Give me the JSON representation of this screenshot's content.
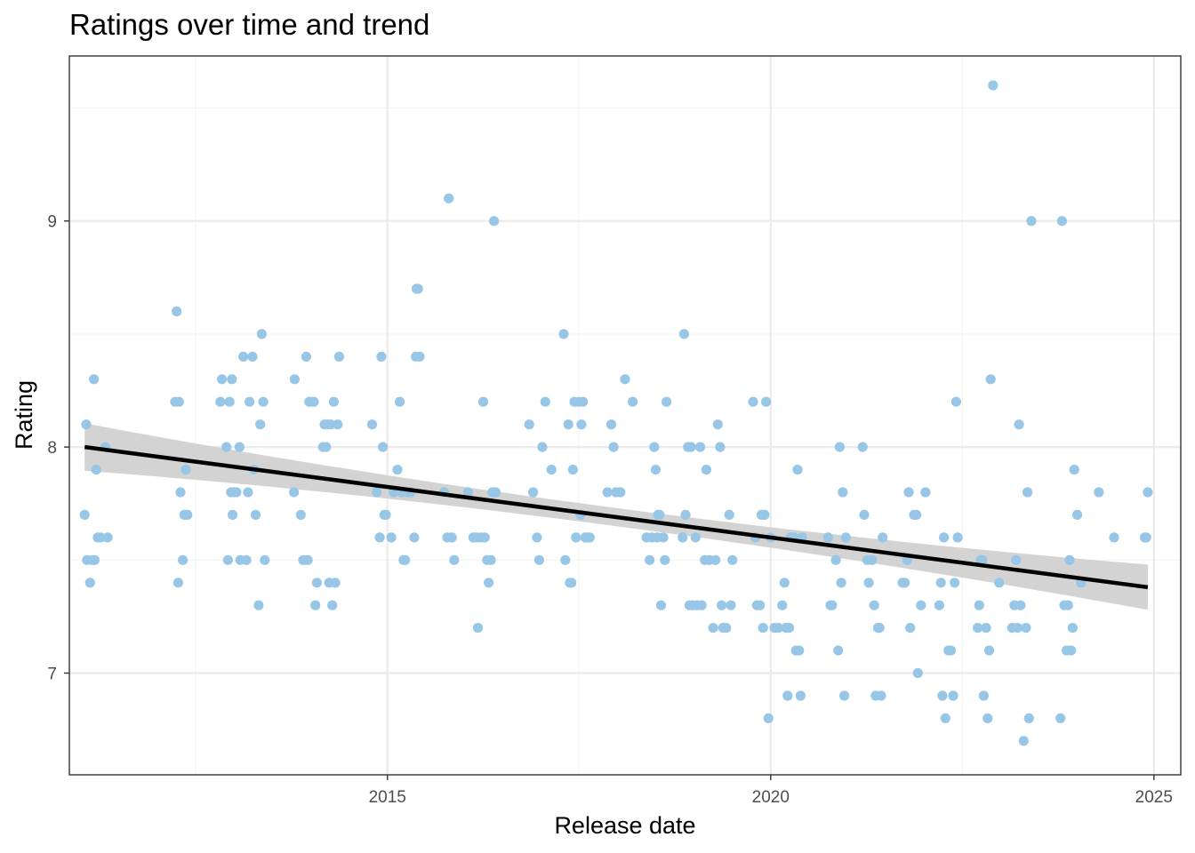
{
  "chart_data": {
    "type": "scatter",
    "title": "Ratings over time and trend",
    "xlabel": "Release date",
    "ylabel": "Rating",
    "x_ticks": [
      "2015",
      "2020",
      "2025"
    ],
    "y_ticks": [
      "7",
      "8",
      "9"
    ],
    "xlim": [
      2010.85,
      2025.35
    ],
    "ylim": [
      6.55,
      9.73
    ],
    "grid": true,
    "colors": {
      "points": "#98c6e6",
      "trend": "#000000",
      "band": "#d3d3d3",
      "grid_major": "#ebebeb",
      "grid_minor": "#f4f4f4",
      "frame": "#333333"
    },
    "points": [
      [
        2011.05,
        7.7
      ],
      [
        2011.07,
        8.1
      ],
      [
        2011.08,
        7.5
      ],
      [
        2011.12,
        7.4
      ],
      [
        2011.15,
        7.5
      ],
      [
        2011.17,
        8.3
      ],
      [
        2011.18,
        7.5
      ],
      [
        2011.2,
        7.9
      ],
      [
        2011.22,
        7.6
      ],
      [
        2011.26,
        7.6
      ],
      [
        2011.32,
        8.0
      ],
      [
        2011.35,
        7.6
      ],
      [
        2012.23,
        8.2
      ],
      [
        2012.25,
        8.6
      ],
      [
        2012.27,
        7.4
      ],
      [
        2012.28,
        8.2
      ],
      [
        2012.3,
        7.8
      ],
      [
        2012.33,
        7.5
      ],
      [
        2012.35,
        7.7
      ],
      [
        2012.37,
        7.9
      ],
      [
        2012.39,
        7.7
      ],
      [
        2012.82,
        8.2
      ],
      [
        2012.84,
        8.3
      ],
      [
        2012.9,
        8.0
      ],
      [
        2012.92,
        7.5
      ],
      [
        2012.94,
        8.2
      ],
      [
        2012.96,
        7.8
      ],
      [
        2012.97,
        8.3
      ],
      [
        2012.98,
        7.7
      ],
      [
        2013.0,
        7.8
      ],
      [
        2013.03,
        7.8
      ],
      [
        2013.07,
        8.0
      ],
      [
        2013.08,
        7.5
      ],
      [
        2013.12,
        8.4
      ],
      [
        2013.16,
        7.5
      ],
      [
        2013.18,
        7.8
      ],
      [
        2013.2,
        8.2
      ],
      [
        2013.24,
        8.4
      ],
      [
        2013.26,
        7.9
      ],
      [
        2013.28,
        7.7
      ],
      [
        2013.32,
        7.3
      ],
      [
        2013.34,
        8.1
      ],
      [
        2013.36,
        8.5
      ],
      [
        2013.38,
        8.2
      ],
      [
        2013.4,
        7.5
      ],
      [
        2013.78,
        7.8
      ],
      [
        2013.79,
        8.3
      ],
      [
        2013.87,
        7.7
      ],
      [
        2013.9,
        7.5
      ],
      [
        2013.94,
        8.4
      ],
      [
        2013.96,
        7.5
      ],
      [
        2013.98,
        8.2
      ],
      [
        2014.0,
        8.2
      ],
      [
        2014.04,
        8.2
      ],
      [
        2014.06,
        7.3
      ],
      [
        2014.08,
        7.4
      ],
      [
        2014.16,
        8.0
      ],
      [
        2014.18,
        8.1
      ],
      [
        2014.2,
        8.0
      ],
      [
        2014.22,
        8.1
      ],
      [
        2014.24,
        7.4
      ],
      [
        2014.26,
        8.1
      ],
      [
        2014.28,
        7.3
      ],
      [
        2014.3,
        8.2
      ],
      [
        2014.32,
        7.4
      ],
      [
        2014.35,
        8.1
      ],
      [
        2014.37,
        8.4
      ],
      [
        2014.8,
        8.1
      ],
      [
        2014.86,
        7.8
      ],
      [
        2014.9,
        7.6
      ],
      [
        2014.92,
        8.4
      ],
      [
        2014.94,
        8.0
      ],
      [
        2014.96,
        7.7
      ],
      [
        2014.98,
        7.7
      ],
      [
        2015.05,
        7.6
      ],
      [
        2015.08,
        7.8
      ],
      [
        2015.13,
        7.9
      ],
      [
        2015.16,
        8.2
      ],
      [
        2015.19,
        7.8
      ],
      [
        2015.21,
        7.5
      ],
      [
        2015.23,
        7.5
      ],
      [
        2015.27,
        7.8
      ],
      [
        2015.3,
        7.8
      ],
      [
        2015.35,
        7.6
      ],
      [
        2015.37,
        8.4
      ],
      [
        2015.38,
        8.7
      ],
      [
        2015.4,
        8.7
      ],
      [
        2015.42,
        8.4
      ],
      [
        2015.74,
        7.8
      ],
      [
        2015.78,
        7.6
      ],
      [
        2015.8,
        9.1
      ],
      [
        2015.84,
        7.6
      ],
      [
        2015.87,
        7.5
      ],
      [
        2016.05,
        7.8
      ],
      [
        2016.12,
        7.6
      ],
      [
        2016.16,
        7.6
      ],
      [
        2016.18,
        7.2
      ],
      [
        2016.22,
        7.6
      ],
      [
        2016.25,
        8.2
      ],
      [
        2016.27,
        7.6
      ],
      [
        2016.3,
        7.5
      ],
      [
        2016.32,
        7.4
      ],
      [
        2016.35,
        7.5
      ],
      [
        2016.37,
        7.8
      ],
      [
        2016.39,
        9.0
      ],
      [
        2016.41,
        7.8
      ],
      [
        2016.85,
        8.1
      ],
      [
        2016.9,
        7.8
      ],
      [
        2016.95,
        7.6
      ],
      [
        2016.98,
        7.5
      ],
      [
        2017.02,
        8.0
      ],
      [
        2017.06,
        8.2
      ],
      [
        2017.14,
        7.9
      ],
      [
        2017.3,
        8.5
      ],
      [
        2017.32,
        7.5
      ],
      [
        2017.36,
        8.1
      ],
      [
        2017.38,
        7.4
      ],
      [
        2017.4,
        7.4
      ],
      [
        2017.42,
        7.9
      ],
      [
        2017.44,
        8.2
      ],
      [
        2017.46,
        7.6
      ],
      [
        2017.5,
        8.2
      ],
      [
        2017.52,
        7.7
      ],
      [
        2017.53,
        8.1
      ],
      [
        2017.55,
        8.2
      ],
      [
        2017.58,
        7.6
      ],
      [
        2017.61,
        7.6
      ],
      [
        2017.64,
        7.6
      ],
      [
        2017.87,
        7.8
      ],
      [
        2017.92,
        8.1
      ],
      [
        2017.95,
        8.0
      ],
      [
        2017.98,
        7.8
      ],
      [
        2018.04,
        7.8
      ],
      [
        2018.1,
        8.3
      ],
      [
        2018.2,
        8.2
      ],
      [
        2018.38,
        7.6
      ],
      [
        2018.42,
        7.5
      ],
      [
        2018.45,
        7.6
      ],
      [
        2018.48,
        8.0
      ],
      [
        2018.5,
        7.9
      ],
      [
        2018.52,
        7.6
      ],
      [
        2018.53,
        7.7
      ],
      [
        2018.55,
        7.7
      ],
      [
        2018.57,
        7.3
      ],
      [
        2018.6,
        7.6
      ],
      [
        2018.62,
        7.5
      ],
      [
        2018.64,
        8.2
      ],
      [
        2018.85,
        7.6
      ],
      [
        2018.87,
        8.5
      ],
      [
        2018.89,
        7.7
      ],
      [
        2018.92,
        8.0
      ],
      [
        2018.94,
        7.3
      ],
      [
        2018.96,
        8.0
      ],
      [
        2018.98,
        7.3
      ],
      [
        2019.02,
        7.6
      ],
      [
        2019.04,
        7.3
      ],
      [
        2019.08,
        8.0
      ],
      [
        2019.1,
        7.3
      ],
      [
        2019.14,
        7.5
      ],
      [
        2019.16,
        7.9
      ],
      [
        2019.2,
        7.5
      ],
      [
        2019.25,
        7.2
      ],
      [
        2019.28,
        7.5
      ],
      [
        2019.31,
        8.1
      ],
      [
        2019.34,
        8.0
      ],
      [
        2019.36,
        7.3
      ],
      [
        2019.38,
        7.2
      ],
      [
        2019.42,
        7.2
      ],
      [
        2019.46,
        7.7
      ],
      [
        2019.48,
        7.3
      ],
      [
        2019.5,
        7.5
      ],
      [
        2019.77,
        8.2
      ],
      [
        2019.8,
        7.6
      ],
      [
        2019.82,
        7.3
      ],
      [
        2019.86,
        7.3
      ],
      [
        2019.88,
        7.7
      ],
      [
        2019.9,
        7.2
      ],
      [
        2019.92,
        7.7
      ],
      [
        2019.94,
        8.2
      ],
      [
        2019.97,
        6.8
      ],
      [
        2020.0,
        7.6
      ],
      [
        2020.05,
        7.2
      ],
      [
        2020.1,
        7.2
      ],
      [
        2020.15,
        7.3
      ],
      [
        2020.18,
        7.4
      ],
      [
        2020.2,
        7.2
      ],
      [
        2020.22,
        6.9
      ],
      [
        2020.24,
        7.2
      ],
      [
        2020.26,
        7.6
      ],
      [
        2020.3,
        7.6
      ],
      [
        2020.33,
        7.1
      ],
      [
        2020.35,
        7.9
      ],
      [
        2020.37,
        7.1
      ],
      [
        2020.39,
        6.9
      ],
      [
        2020.41,
        7.6
      ],
      [
        2020.75,
        7.6
      ],
      [
        2020.78,
        7.3
      ],
      [
        2020.8,
        7.3
      ],
      [
        2020.85,
        7.5
      ],
      [
        2020.88,
        7.1
      ],
      [
        2020.9,
        8.0
      ],
      [
        2020.92,
        7.4
      ],
      [
        2020.94,
        7.8
      ],
      [
        2020.96,
        6.9
      ],
      [
        2020.98,
        7.6
      ],
      [
        2021.2,
        8.0
      ],
      [
        2021.22,
        7.7
      ],
      [
        2021.26,
        7.5
      ],
      [
        2021.28,
        7.4
      ],
      [
        2021.32,
        7.5
      ],
      [
        2021.35,
        7.3
      ],
      [
        2021.37,
        6.9
      ],
      [
        2021.4,
        7.2
      ],
      [
        2021.42,
        7.2
      ],
      [
        2021.44,
        6.9
      ],
      [
        2021.46,
        7.6
      ],
      [
        2021.72,
        7.4
      ],
      [
        2021.75,
        7.4
      ],
      [
        2021.78,
        7.5
      ],
      [
        2021.8,
        7.8
      ],
      [
        2021.82,
        7.2
      ],
      [
        2021.87,
        7.7
      ],
      [
        2021.9,
        7.7
      ],
      [
        2021.92,
        7.0
      ],
      [
        2021.96,
        7.3
      ],
      [
        2022.02,
        7.8
      ],
      [
        2022.2,
        7.3
      ],
      [
        2022.22,
        7.4
      ],
      [
        2022.24,
        6.9
      ],
      [
        2022.26,
        7.6
      ],
      [
        2022.28,
        6.8
      ],
      [
        2022.32,
        7.1
      ],
      [
        2022.35,
        7.1
      ],
      [
        2022.38,
        6.9
      ],
      [
        2022.4,
        7.4
      ],
      [
        2022.42,
        8.2
      ],
      [
        2022.44,
        7.6
      ],
      [
        2022.7,
        7.2
      ],
      [
        2022.72,
        7.3
      ],
      [
        2022.74,
        7.5
      ],
      [
        2022.76,
        7.5
      ],
      [
        2022.78,
        6.9
      ],
      [
        2022.81,
        7.2
      ],
      [
        2022.83,
        6.8
      ],
      [
        2022.85,
        7.1
      ],
      [
        2022.87,
        8.3
      ],
      [
        2022.9,
        9.6
      ],
      [
        2022.98,
        7.4
      ],
      [
        2023.15,
        7.2
      ],
      [
        2023.18,
        7.3
      ],
      [
        2023.2,
        7.5
      ],
      [
        2023.22,
        7.2
      ],
      [
        2023.24,
        8.1
      ],
      [
        2023.26,
        7.3
      ],
      [
        2023.3,
        6.7
      ],
      [
        2023.33,
        7.2
      ],
      [
        2023.35,
        7.8
      ],
      [
        2023.37,
        6.8
      ],
      [
        2023.4,
        9.0
      ],
      [
        2023.78,
        6.8
      ],
      [
        2023.8,
        9.0
      ],
      [
        2023.83,
        7.3
      ],
      [
        2023.86,
        7.1
      ],
      [
        2023.88,
        7.3
      ],
      [
        2023.9,
        7.5
      ],
      [
        2023.92,
        7.1
      ],
      [
        2023.94,
        7.2
      ],
      [
        2023.96,
        7.9
      ],
      [
        2024.0,
        7.7
      ],
      [
        2024.05,
        7.4
      ],
      [
        2024.28,
        7.8
      ],
      [
        2024.48,
        7.6
      ],
      [
        2024.88,
        7.6
      ],
      [
        2024.9,
        7.6
      ],
      [
        2024.92,
        7.8
      ]
    ],
    "trend": {
      "x": [
        2011.05,
        2024.92
      ],
      "y": [
        8.0,
        7.38
      ],
      "band_lower": [
        7.89,
        7.28
      ],
      "band_upper": [
        8.1,
        7.48
      ],
      "band_mid_width": 0.04
    }
  }
}
